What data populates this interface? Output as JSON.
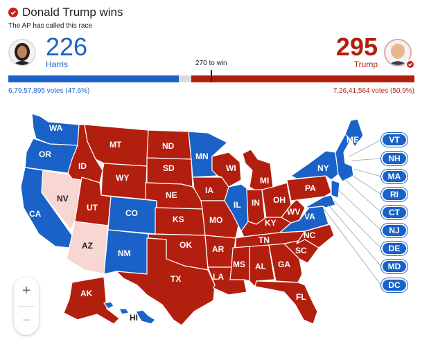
{
  "header": {
    "title": "Donald Trump wins",
    "subtitle": "The AP has called this race"
  },
  "harris": {
    "electoral_votes": "226",
    "name": "Harris",
    "votes_text": "6,79,57,895 votes (47.6%)",
    "color": "#1a62c7"
  },
  "trump": {
    "electoral_votes": "295",
    "name": "Trump",
    "votes_text": "7,26,41,564 votes (50.9%)",
    "color": "#b31f0e"
  },
  "bar": {
    "to_win_label": "270 to win",
    "harris_share": 0.42,
    "undecided_share": 0.03,
    "trump_share": 0.55
  },
  "map": {
    "states": {
      "WA": "WA",
      "OR": "OR",
      "CA": "CA",
      "NV": "NV",
      "ID": "ID",
      "MT": "MT",
      "WY": "WY",
      "UT": "UT",
      "AZ": "AZ",
      "CO": "CO",
      "NM": "NM",
      "ND": "ND",
      "SD": "SD",
      "NE": "NE",
      "KS": "KS",
      "OK": "OK",
      "TX": "TX",
      "MN": "MN",
      "IA": "IA",
      "MO": "MO",
      "AR": "AR",
      "LA": "LA",
      "WI": "WI",
      "IL": "IL",
      "MI": "MI",
      "IN": "IN",
      "OH": "OH",
      "KY": "KY",
      "TN": "TN",
      "MS": "MS",
      "AL": "AL",
      "GA": "GA",
      "FL": "FL",
      "SC": "SC",
      "NC": "NC",
      "VA": "VA",
      "WV": "WV",
      "PA": "PA",
      "NY": "NY",
      "ME": "ME",
      "AK": "AK",
      "HI": "HI"
    },
    "colors": {
      "dem": "#1a62c7",
      "rep": "#b31f0e",
      "leaning": "#f8d6d1"
    }
  },
  "small_states": [
    "VT",
    "NH",
    "MA",
    "RI",
    "CT",
    "NJ",
    "DE",
    "MD",
    "DC"
  ],
  "zoom": {
    "in": "+",
    "out": "−"
  }
}
